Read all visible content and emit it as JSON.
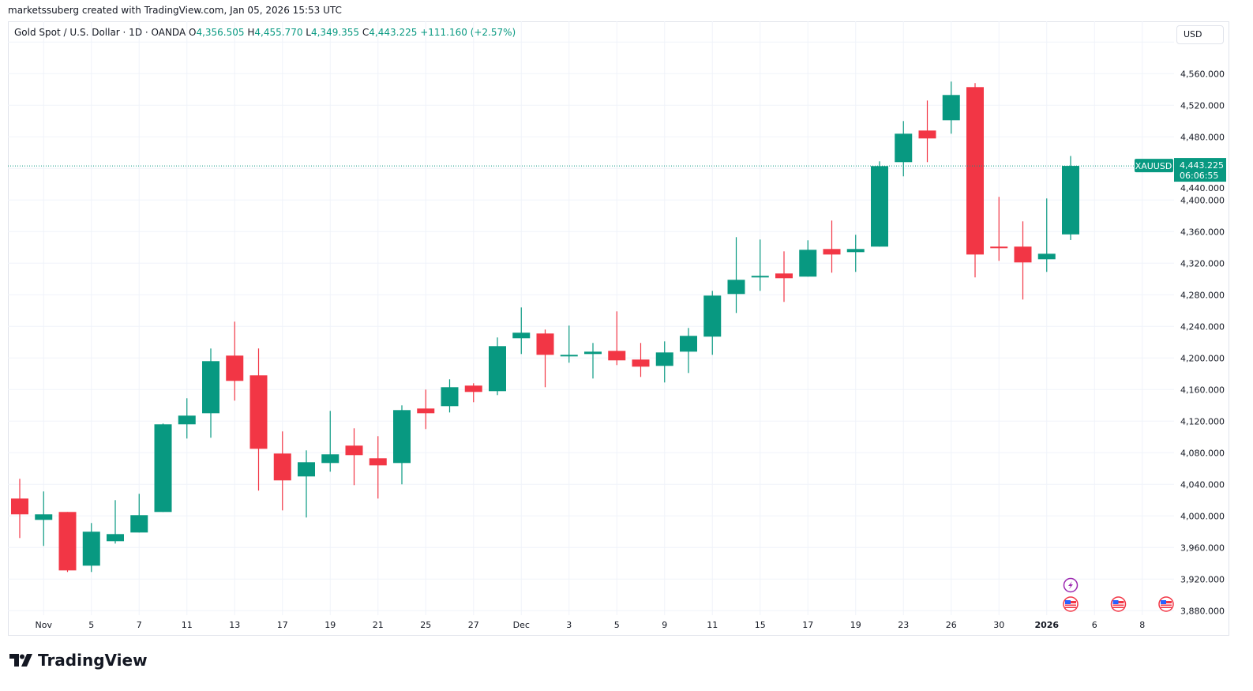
{
  "credit": "marketssuberg created with TradingView.com, Jan 05, 2026 15:53 UTC",
  "legend": {
    "symbol_desc": "Gold Spot / U.S. Dollar · 1D · OANDA",
    "o_label": "O",
    "o": "4,356.505",
    "h_label": "H",
    "h": "4,455.770",
    "l_label": "L",
    "l": "4,349.355",
    "c_label": "C",
    "c": "4,443.225",
    "change": "+111.160 (+2.57%)"
  },
  "currency": "USD",
  "price_tag": {
    "symbol": "XAUUSD",
    "price": "4,443.225",
    "countdown": "06:06:55"
  },
  "footer": {
    "brand": "TradingView"
  },
  "colors": {
    "up": "#089981",
    "down": "#F23645",
    "grid": "#f0f3fa",
    "event": "#9c27b0"
  },
  "chart_data": {
    "type": "candlestick",
    "title": "Gold Spot / U.S. Dollar · 1D · OANDA",
    "ylim": [
      3840,
      4626
    ],
    "grid": true,
    "y_ticks": [
      "3,880.000",
      "3,920.000",
      "3,960.000",
      "4,000.000",
      "4,040.000",
      "4,080.000",
      "4,120.000",
      "4,160.000",
      "4,200.000",
      "4,240.000",
      "4,280.000",
      "4,320.000",
      "4,360.000",
      "4,400.000",
      "4,440.000",
      "4,480.000",
      "4,520.000",
      "4,560.000"
    ],
    "x_ticks": [
      {
        "label": "Nov",
        "date": "2025-11-03"
      },
      {
        "label": "5",
        "date": "2025-11-05"
      },
      {
        "label": "7",
        "date": "2025-11-07"
      },
      {
        "label": "11",
        "date": "2025-11-11"
      },
      {
        "label": "13",
        "date": "2025-11-13"
      },
      {
        "label": "17",
        "date": "2025-11-17"
      },
      {
        "label": "19",
        "date": "2025-11-19"
      },
      {
        "label": "21",
        "date": "2025-11-21"
      },
      {
        "label": "25",
        "date": "2025-11-25"
      },
      {
        "label": "27",
        "date": "2025-11-27"
      },
      {
        "label": "Dec",
        "date": "2025-12-01"
      },
      {
        "label": "3",
        "date": "2025-12-03"
      },
      {
        "label": "5",
        "date": "2025-12-05"
      },
      {
        "label": "9",
        "date": "2025-12-09"
      },
      {
        "label": "11",
        "date": "2025-12-11"
      },
      {
        "label": "15",
        "date": "2025-12-15"
      },
      {
        "label": "17",
        "date": "2025-12-17"
      },
      {
        "label": "19",
        "date": "2025-12-19"
      },
      {
        "label": "23",
        "date": "2025-12-23"
      },
      {
        "label": "26",
        "date": "2025-12-26"
      },
      {
        "label": "30",
        "date": "2025-12-30"
      },
      {
        "label": "2026",
        "date": "2026-01-02"
      },
      {
        "label": "6",
        "date": "2026-01-06"
      },
      {
        "label": "8",
        "date": "2026-01-08"
      }
    ],
    "last_price": 4443.225,
    "candles": [
      {
        "date": "2025-10-31",
        "o": 4022,
        "h": 4047,
        "l": 3972,
        "c": 4002
      },
      {
        "date": "2025-11-03",
        "o": 3995,
        "h": 4031,
        "l": 3962,
        "c": 4002
      },
      {
        "date": "2025-11-04",
        "o": 4005,
        "h": 4005,
        "l": 3929,
        "c": 3931
      },
      {
        "date": "2025-11-05",
        "o": 3937,
        "h": 3991,
        "l": 3929,
        "c": 3980
      },
      {
        "date": "2025-11-06",
        "o": 3968,
        "h": 4020,
        "l": 3965,
        "c": 3977
      },
      {
        "date": "2025-11-07",
        "o": 3979,
        "h": 4028,
        "l": 3979,
        "c": 4001
      },
      {
        "date": "2025-11-10",
        "o": 4005,
        "h": 4117,
        "l": 4005,
        "c": 4116
      },
      {
        "date": "2025-11-11",
        "o": 4116,
        "h": 4149,
        "l": 4098,
        "c": 4127
      },
      {
        "date": "2025-11-12",
        "o": 4130,
        "h": 4212,
        "l": 4099,
        "c": 4196
      },
      {
        "date": "2025-11-13",
        "o": 4203,
        "h": 4246,
        "l": 4146,
        "c": 4171
      },
      {
        "date": "2025-11-14",
        "o": 4178,
        "h": 4212,
        "l": 4032,
        "c": 4085
      },
      {
        "date": "2025-11-17",
        "o": 4079,
        "h": 4107,
        "l": 4007,
        "c": 4045
      },
      {
        "date": "2025-11-18",
        "o": 4050,
        "h": 4083,
        "l": 3998,
        "c": 4068
      },
      {
        "date": "2025-11-19",
        "o": 4067,
        "h": 4133,
        "l": 4056,
        "c": 4078
      },
      {
        "date": "2025-11-20",
        "o": 4089,
        "h": 4111,
        "l": 4039,
        "c": 4077
      },
      {
        "date": "2025-11-21",
        "o": 4073,
        "h": 4101,
        "l": 4022,
        "c": 4064
      },
      {
        "date": "2025-11-24",
        "o": 4067,
        "h": 4140,
        "l": 4040,
        "c": 4134
      },
      {
        "date": "2025-11-25",
        "o": 4136,
        "h": 4160,
        "l": 4110,
        "c": 4130
      },
      {
        "date": "2025-11-26",
        "o": 4139,
        "h": 4173,
        "l": 4131,
        "c": 4163
      },
      {
        "date": "2025-11-27",
        "o": 4165,
        "h": 4168,
        "l": 4144,
        "c": 4157
      },
      {
        "date": "2025-11-28",
        "o": 4158,
        "h": 4226,
        "l": 4153,
        "c": 4215
      },
      {
        "date": "2025-12-01",
        "o": 4225,
        "h": 4264,
        "l": 4205,
        "c": 4232
      },
      {
        "date": "2025-12-02",
        "o": 4231,
        "h": 4236,
        "l": 4163,
        "c": 4204
      },
      {
        "date": "2025-12-03",
        "o": 4203,
        "h": 4241,
        "l": 4194,
        "c": 4204
      },
      {
        "date": "2025-12-04",
        "o": 4205,
        "h": 4219,
        "l": 4174,
        "c": 4208
      },
      {
        "date": "2025-12-05",
        "o": 4209,
        "h": 4259,
        "l": 4191,
        "c": 4197
      },
      {
        "date": "2025-12-08",
        "o": 4198,
        "h": 4219,
        "l": 4176,
        "c": 4189
      },
      {
        "date": "2025-12-09",
        "o": 4190,
        "h": 4221,
        "l": 4169,
        "c": 4207
      },
      {
        "date": "2025-12-10",
        "o": 4208,
        "h": 4238,
        "l": 4181,
        "c": 4228
      },
      {
        "date": "2025-12-11",
        "o": 4227,
        "h": 4285,
        "l": 4204,
        "c": 4279
      },
      {
        "date": "2025-12-12",
        "o": 4281,
        "h": 4353,
        "l": 4257,
        "c": 4299
      },
      {
        "date": "2025-12-15",
        "o": 4303,
        "h": 4350,
        "l": 4285,
        "c": 4304
      },
      {
        "date": "2025-12-16",
        "o": 4307,
        "h": 4335,
        "l": 4271,
        "c": 4301
      },
      {
        "date": "2025-12-17",
        "o": 4303,
        "h": 4349,
        "l": 4303,
        "c": 4337
      },
      {
        "date": "2025-12-18",
        "o": 4338,
        "h": 4374,
        "l": 4308,
        "c": 4331
      },
      {
        "date": "2025-12-19",
        "o": 4334,
        "h": 4356,
        "l": 4309,
        "c": 4338
      },
      {
        "date": "2025-12-22",
        "o": 4341,
        "h": 4449,
        "l": 4341,
        "c": 4443
      },
      {
        "date": "2025-12-23",
        "o": 4448,
        "h": 4500,
        "l": 4430,
        "c": 4484
      },
      {
        "date": "2025-12-24",
        "o": 4488,
        "h": 4526,
        "l": 4448,
        "c": 4478
      },
      {
        "date": "2025-12-26",
        "o": 4501,
        "h": 4550,
        "l": 4484,
        "c": 4533
      },
      {
        "date": "2025-12-29",
        "o": 4543,
        "h": 4548,
        "l": 4302,
        "c": 4331
      },
      {
        "date": "2025-12-30",
        "o": 4341,
        "h": 4404,
        "l": 4323,
        "c": 4339
      },
      {
        "date": "2025-12-31",
        "o": 4341,
        "h": 4373,
        "l": 4274,
        "c": 4321
      },
      {
        "date": "2026-01-02",
        "o": 4325,
        "h": 4402,
        "l": 4309,
        "c": 4332
      },
      {
        "date": "2026-01-05",
        "o": 4356.505,
        "h": 4455.77,
        "l": 4349.355,
        "c": 4443.225
      }
    ],
    "events": [
      {
        "icon": "lightning-icon",
        "date": "2026-01-05",
        "row": 0
      },
      {
        "icon": "us-flag-icon",
        "date": "2026-01-05",
        "row": 1
      },
      {
        "icon": "us-flag-icon",
        "date": "2026-01-07",
        "row": 1
      },
      {
        "icon": "us-flag-icon",
        "date": "2026-01-09",
        "row": 1
      }
    ]
  }
}
